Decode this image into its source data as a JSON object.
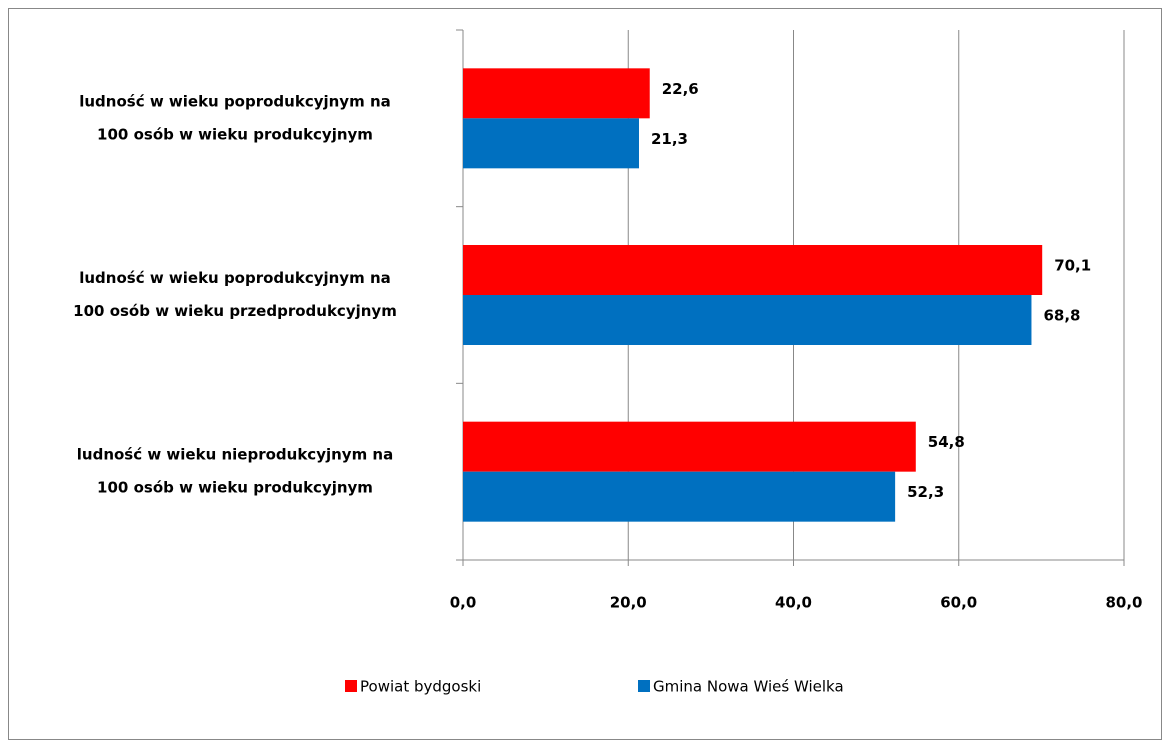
{
  "chart_data": {
    "type": "bar",
    "orientation": "horizontal",
    "categories": [
      "ludność w wieku poprodukcyjnym  na\n100 osób w wieku produkcyjnym",
      "ludność w wieku poprodukcyjnym  na\n100 osób w wieku przedprodukcyjnym",
      "ludność w wieku nieprodukcyjnym  na\n100 osób w wieku produkcyjnym"
    ],
    "series": [
      {
        "name": "Powiat bydgoski",
        "color": "#ff0000",
        "values": [
          22.6,
          70.1,
          54.8
        ],
        "value_labels": [
          "22,6",
          "70,1",
          "54,8"
        ]
      },
      {
        "name": "Gmina Nowa Wieś Wielka",
        "color": "#0070c0",
        "values": [
          21.3,
          68.8,
          52.3
        ],
        "value_labels": [
          "21,3",
          "68,8",
          "52,3"
        ]
      }
    ],
    "xlim": [
      0,
      80
    ],
    "xticks": [
      {
        "value": 0,
        "label": "0,0"
      },
      {
        "value": 20,
        "label": "20,0"
      },
      {
        "value": 40,
        "label": "40,0"
      },
      {
        "value": 60,
        "label": "60,0"
      },
      {
        "value": 80,
        "label": "80,0"
      }
    ],
    "grid": true,
    "legend": "bottom"
  }
}
